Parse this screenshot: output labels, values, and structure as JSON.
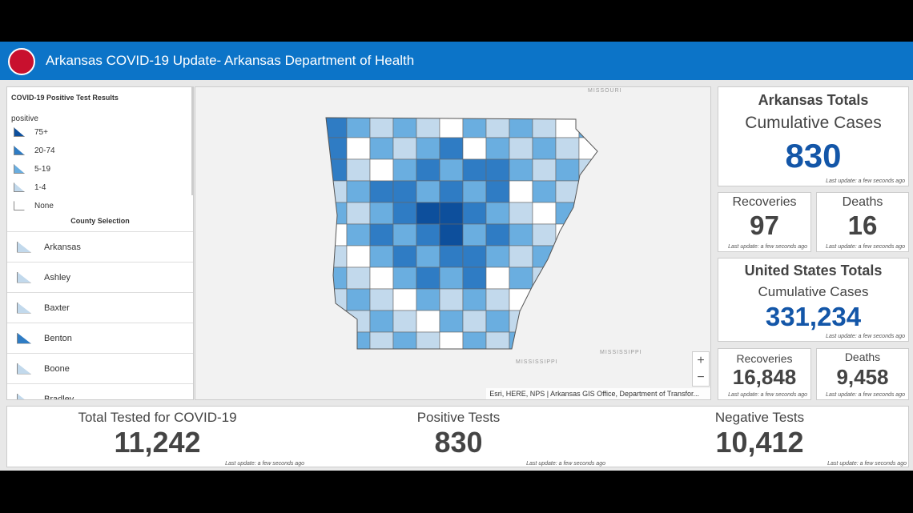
{
  "header": {
    "title": "Arkansas COVID-19 Update- Arkansas Department of Health"
  },
  "legend": {
    "title": "COVID-19 Positive Test Results",
    "field": "positive",
    "items": [
      "75+",
      "20-74",
      "5-19",
      "1-4",
      "None"
    ]
  },
  "county_selection": {
    "title": "County Selection",
    "items": [
      "Arkansas",
      "Ashley",
      "Baxter",
      "Benton",
      "Boone",
      "Bradley"
    ]
  },
  "map": {
    "labels": [
      "MISSOURI",
      "MISSISSIPPI",
      "MISSISSIPPI"
    ],
    "attribution": "Esri, HERE, NPS | Arkansas GIS Office, Department of Transfor...",
    "zoom_in": "+",
    "zoom_out": "−"
  },
  "arkansas_totals": {
    "title": "Arkansas Totals",
    "subtitle": "Cumulative Cases",
    "value": "830",
    "note": "Last update: a few seconds ago"
  },
  "arkansas_recoveries": {
    "title": "Recoveries",
    "value": "97",
    "note": "Last update: a few seconds ago"
  },
  "arkansas_deaths": {
    "title": "Deaths",
    "value": "16",
    "note": "Last update: a few seconds ago"
  },
  "us_totals": {
    "title": "United States Totals",
    "subtitle": "Cumulative Cases",
    "value": "331,234",
    "note": "Last update: a few seconds ago"
  },
  "us_recoveries": {
    "title": "Recoveries",
    "value": "16,848",
    "note": "Last update: a few seconds ago"
  },
  "us_deaths": {
    "title": "Deaths",
    "value": "9,458",
    "note": "Last update: a few seconds ago"
  },
  "total_tested": {
    "title": "Total Tested for COVID-19",
    "value": "11,242",
    "note": "Last update: a few seconds ago"
  },
  "positive_tests": {
    "title": "Positive Tests",
    "value": "830",
    "note": "Last update: a few seconds ago"
  },
  "negative_tests": {
    "title": "Negative Tests",
    "value": "10,412",
    "note": "Last update: a few seconds ago"
  }
}
